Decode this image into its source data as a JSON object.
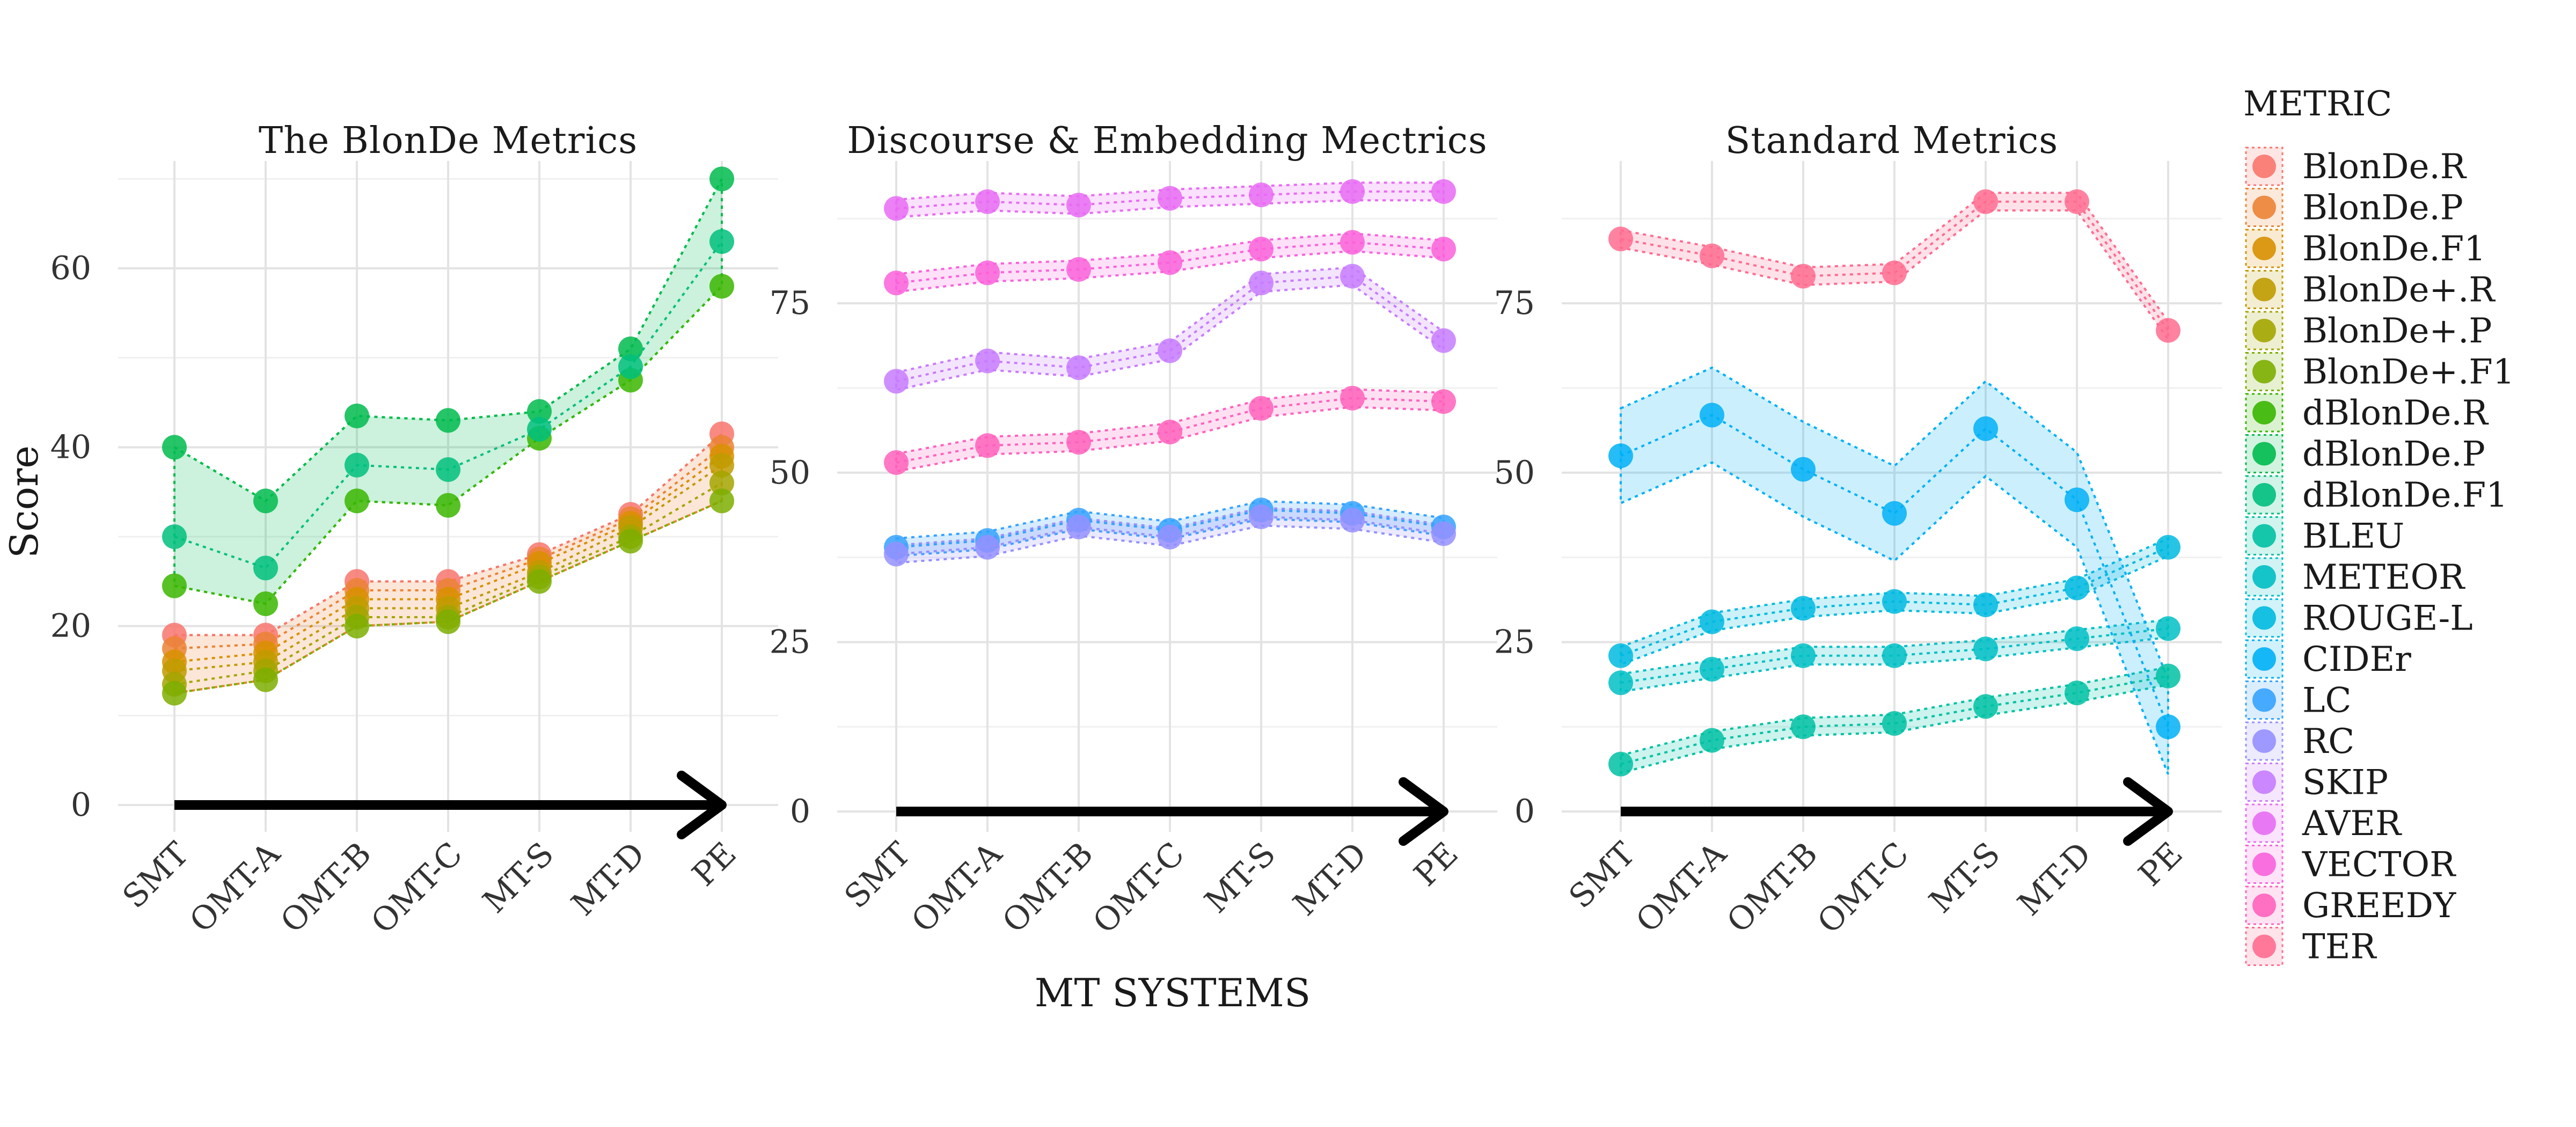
{
  "chart_data": {
    "type": "line",
    "title": "",
    "xlabel": "MT SYSTEMS",
    "ylabel": "Score",
    "categories": [
      "SMT",
      "OMT-A",
      "OMT-B",
      "OMT-C",
      "MT-S",
      "MT-D",
      "PE"
    ],
    "legend_title": "METRIC",
    "legend_placement": "right",
    "grid": true,
    "arrow": true,
    "series_meta": [
      {
        "key": "blonde_r",
        "name": "BlonDe.R",
        "color": "#F8766D"
      },
      {
        "key": "blonde_p",
        "name": "BlonDe.P",
        "color": "#EB8335"
      },
      {
        "key": "blonde_f1",
        "name": "BlonDe.F1",
        "color": "#D89000"
      },
      {
        "key": "blondep_r",
        "name": "BlonDe+.R",
        "color": "#BF9B00"
      },
      {
        "key": "blondep_p",
        "name": "BlonDe+.P",
        "color": "#A3A500"
      },
      {
        "key": "blondep_f1",
        "name": "BlonDe+.F1",
        "color": "#7CAE00"
      },
      {
        "key": "dblonde_r",
        "name": "dBlonDe.R",
        "color": "#39B600"
      },
      {
        "key": "dblonde_p",
        "name": "dBlonDe.P",
        "color": "#00BB4E"
      },
      {
        "key": "dblonde_f1",
        "name": "dBlonDe.F1",
        "color": "#00BF7D"
      },
      {
        "key": "bleu",
        "name": "BLEU",
        "color": "#00C1A3"
      },
      {
        "key": "meteor",
        "name": "METEOR",
        "color": "#00BFC4"
      },
      {
        "key": "rouge_l",
        "name": "ROUGE-L",
        "color": "#00BAE0"
      },
      {
        "key": "cider",
        "name": "CIDEr",
        "color": "#00B0F6"
      },
      {
        "key": "lc",
        "name": "LC",
        "color": "#35A2FF"
      },
      {
        "key": "rc",
        "name": "RC",
        "color": "#9590FF"
      },
      {
        "key": "skip",
        "name": "SKIP",
        "color": "#C77CFF"
      },
      {
        "key": "aver",
        "name": "AVER",
        "color": "#E76BF3"
      },
      {
        "key": "vector",
        "name": "VECTOR",
        "color": "#FA62DB"
      },
      {
        "key": "greedy",
        "name": "GREEDY",
        "color": "#FF62BC"
      },
      {
        "key": "ter",
        "name": "TER",
        "color": "#FF6C91"
      }
    ],
    "panels": [
      {
        "title": "The BlonDe Metrics",
        "ylim": [
          -3,
          72
        ],
        "yticks": [
          0,
          20,
          40,
          60
        ],
        "series": [
          {
            "name": "BlonDe.R",
            "values": [
              19,
              19,
              25,
              25,
              28,
              32.5,
              41.5
            ]
          },
          {
            "name": "BlonDe.P",
            "values": [
              17.5,
              18,
              24,
              24,
              27.5,
              32,
              40
            ]
          },
          {
            "name": "BlonDe.F1",
            "values": [
              16,
              17,
              23,
              23,
              27,
              31.5,
              39
            ]
          },
          {
            "name": "BlonDe+.R",
            "values": [
              15,
              16,
              22,
              22,
              26,
              31,
              38
            ]
          },
          {
            "name": "BlonDe+.P",
            "values": [
              13.5,
              15,
              21,
              21,
              25.5,
              30,
              36
            ]
          },
          {
            "name": "BlonDe+.F1",
            "values": [
              12.5,
              14,
              20,
              20.5,
              25,
              29.5,
              34
            ]
          },
          {
            "name": "dBlonDe.R",
            "values": [
              24.5,
              22.5,
              34,
              33.5,
              41,
              47.5,
              58
            ]
          },
          {
            "name": "dBlonDe.P",
            "values": [
              40,
              34,
              43.5,
              43,
              44,
              51,
              70
            ]
          },
          {
            "name": "dBlonDe.F1",
            "values": [
              30,
              26.5,
              38,
              37.5,
              42,
              49,
              63
            ]
          }
        ]
      },
      {
        "title": "Discourse & Embedding Mectrics",
        "ylim": [
          -3,
          96
        ],
        "yticks": [
          0,
          25,
          50,
          75
        ],
        "series": [
          {
            "name": "LC",
            "values": [
              39,
              40,
              43,
              41.5,
              44.5,
              44,
              42
            ]
          },
          {
            "name": "RC",
            "values": [
              38,
              39,
              42,
              40.5,
              43.5,
              43,
              41
            ]
          },
          {
            "name": "SKIP",
            "values": [
              63.5,
              66.5,
              65.5,
              68,
              78,
              79,
              69.5
            ]
          },
          {
            "name": "AVER",
            "values": [
              89,
              90,
              89.5,
              90.5,
              91,
              91.5,
              91.5
            ]
          },
          {
            "name": "VECTOR",
            "values": [
              78,
              79.5,
              80,
              81,
              83,
              84,
              83
            ]
          },
          {
            "name": "GREEDY",
            "values": [
              51.5,
              54,
              54.5,
              56,
              59.5,
              61,
              60.5
            ]
          }
        ]
      },
      {
        "title": "Standard Metrics",
        "ylim": [
          -3,
          96
        ],
        "yticks": [
          0,
          25,
          50,
          75
        ],
        "series": [
          {
            "name": "BLEU",
            "values": [
              7,
              10.5,
              12.5,
              13,
              15.5,
              17.5,
              20
            ]
          },
          {
            "name": "METEOR",
            "values": [
              19,
              21,
              23,
              23,
              24,
              25.5,
              27
            ]
          },
          {
            "name": "ROUGE-L",
            "values": [
              23,
              28,
              30,
              31,
              30.5,
              33,
              39
            ]
          },
          {
            "name": "CIDEr",
            "values": [
              52.5,
              58.5,
              50.5,
              44,
              56.5,
              46,
              12.5
            ]
          },
          {
            "name": "TER",
            "values": [
              84.5,
              82,
              79,
              79.5,
              90,
              90,
              71
            ]
          }
        ]
      }
    ]
  }
}
